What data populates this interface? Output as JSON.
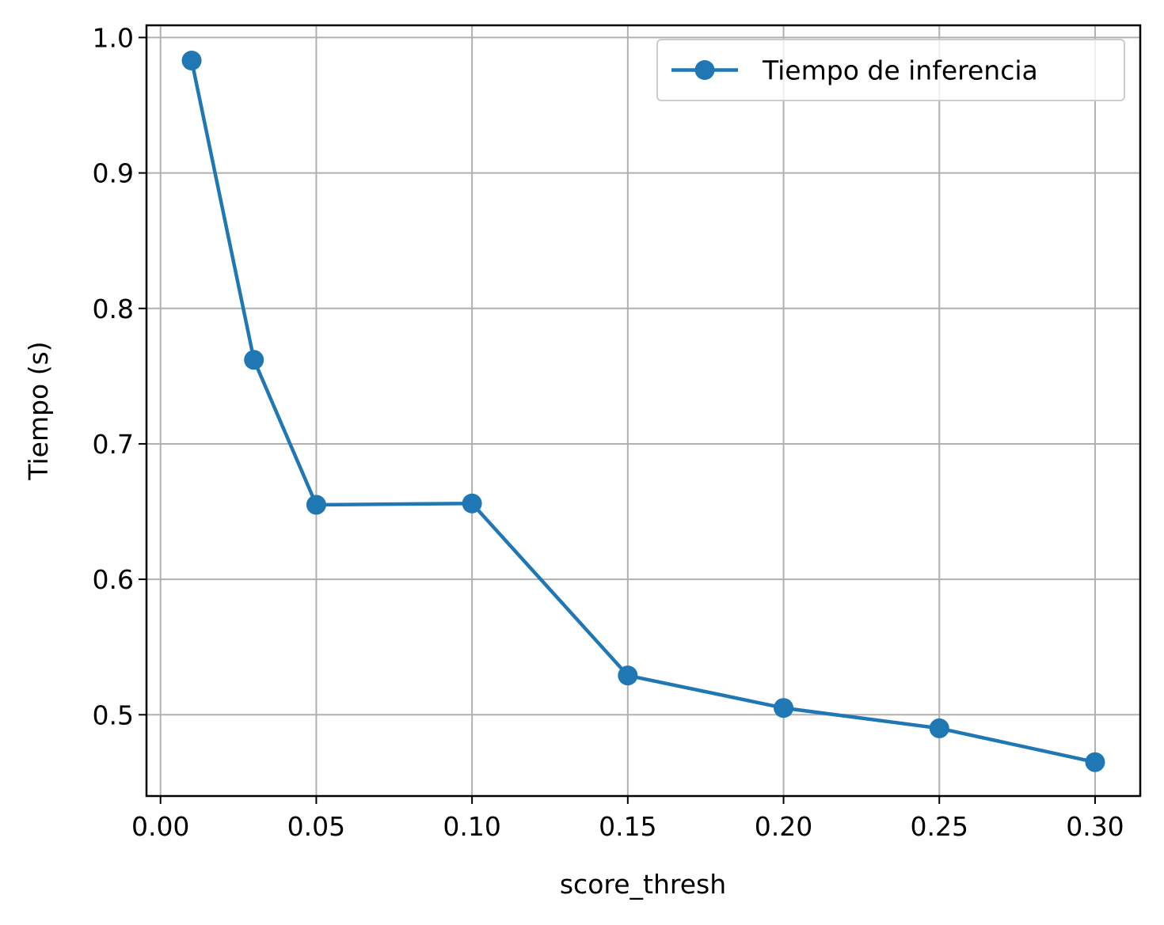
{
  "chart_data": {
    "type": "line",
    "title": "",
    "xlabel": "score_thresh",
    "ylabel": "Tiempo (s)",
    "xlim": [
      -0.0045,
      0.3145
    ],
    "ylim": [
      0.44,
      1.009
    ],
    "grid": true,
    "legend_position": "top-right",
    "x_ticks": [
      0.0,
      0.05,
      0.1,
      0.15,
      0.2,
      0.25,
      0.3
    ],
    "x_tick_labels": [
      "0.00",
      "0.05",
      "0.10",
      "0.15",
      "0.20",
      "0.25",
      "0.30"
    ],
    "y_ticks": [
      0.5,
      0.6,
      0.7,
      0.8,
      0.9,
      1.0
    ],
    "y_tick_labels": [
      "0.5",
      "0.6",
      "0.7",
      "0.8",
      "0.9",
      "1.0"
    ],
    "series": [
      {
        "name": "Tiempo de inferencia",
        "color": "#1f77b4",
        "marker": "circle",
        "x": [
          0.01,
          0.03,
          0.05,
          0.1,
          0.15,
          0.2,
          0.25,
          0.3
        ],
        "y": [
          0.983,
          0.762,
          0.655,
          0.656,
          0.529,
          0.505,
          0.49,
          0.465
        ]
      }
    ]
  }
}
